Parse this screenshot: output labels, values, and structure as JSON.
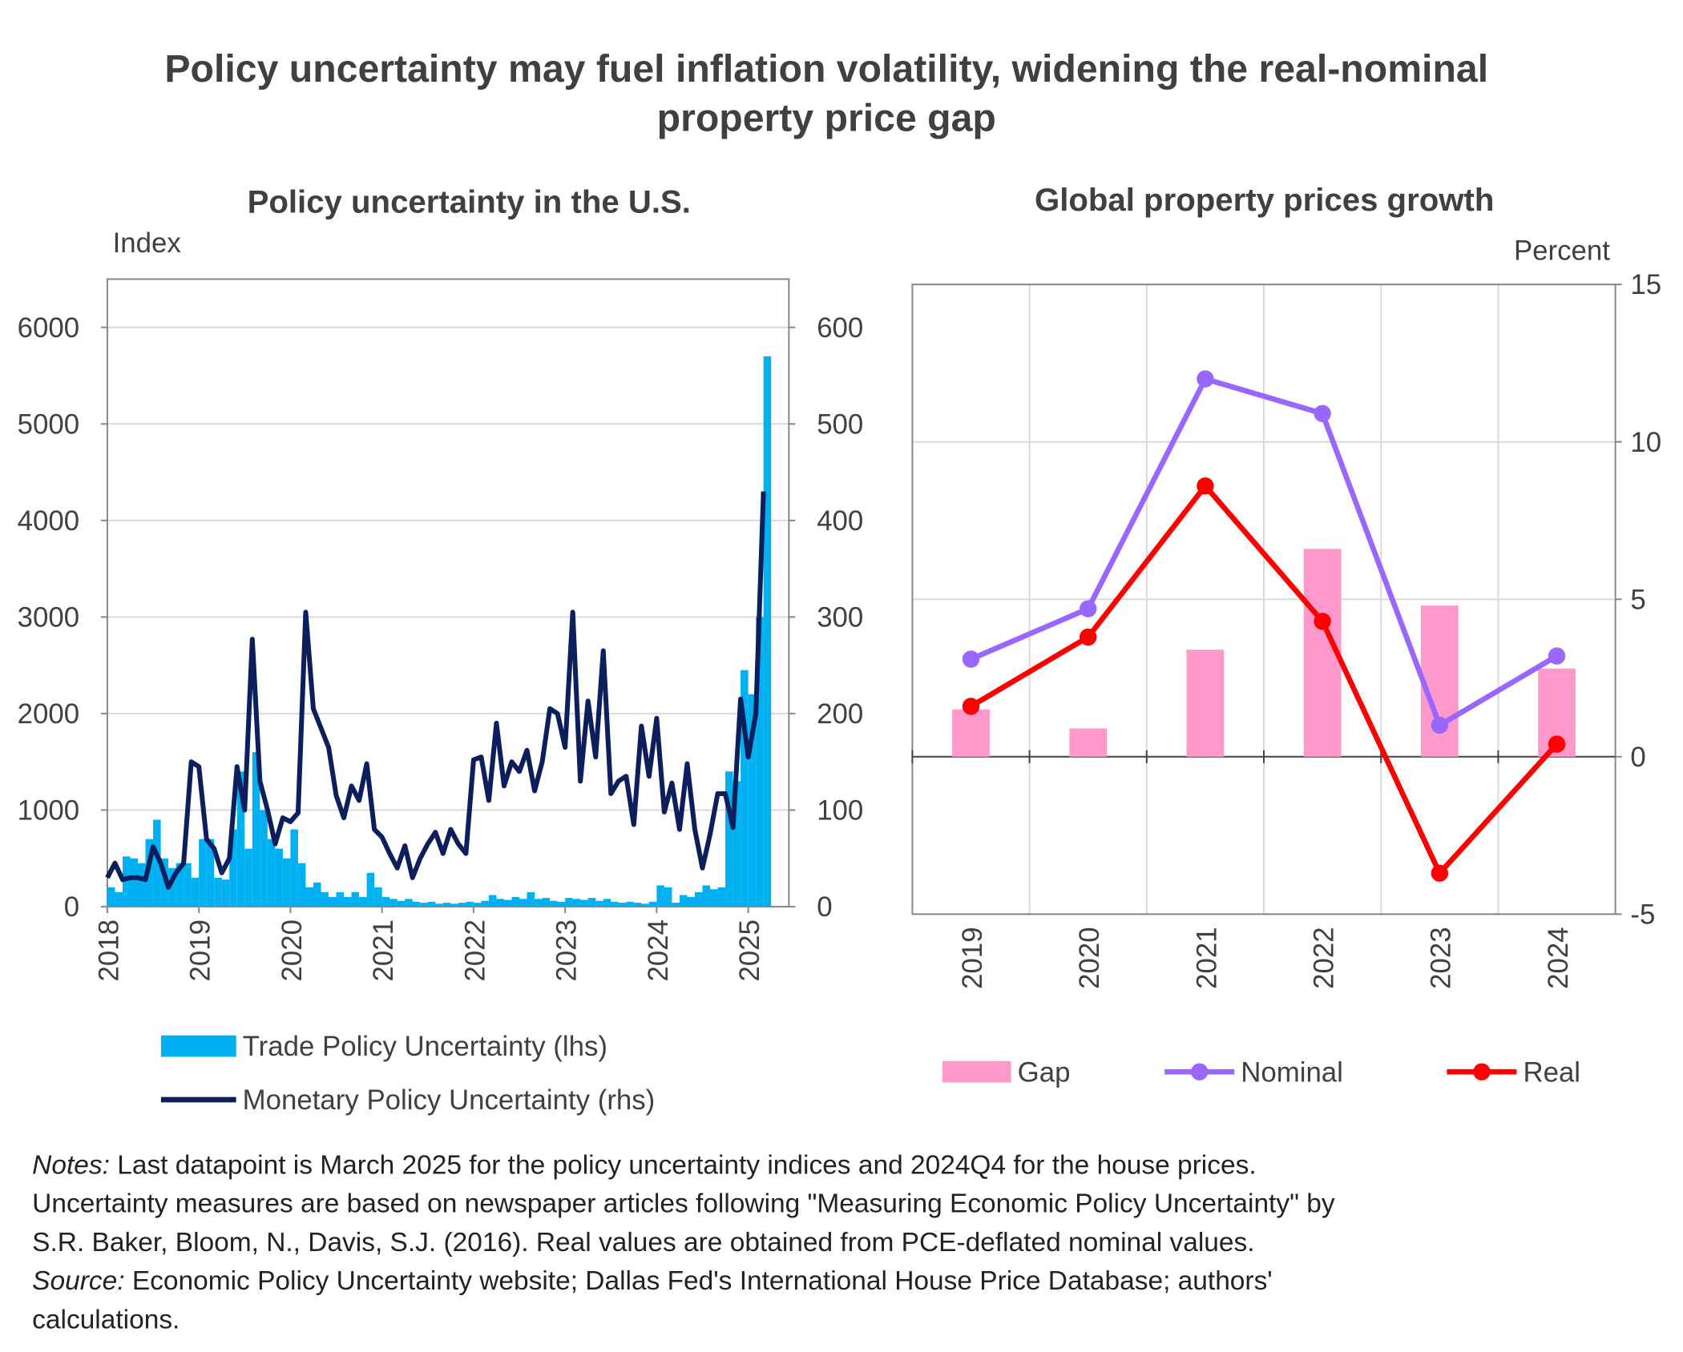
{
  "title": [
    "Policy uncertainty may fuel inflation volatility, widening the real-nominal",
    "property price gap"
  ],
  "chart_data": [
    {
      "type": "combo",
      "title": "Policy uncertainty in the U.S.",
      "y_label": "Index",
      "categories": [
        "2018",
        null,
        null,
        null,
        null,
        null,
        null,
        null,
        null,
        null,
        null,
        null,
        "2019",
        null,
        null,
        null,
        null,
        null,
        null,
        null,
        null,
        null,
        null,
        null,
        "2020",
        null,
        null,
        null,
        null,
        null,
        null,
        null,
        null,
        null,
        null,
        null,
        "2021",
        null,
        null,
        null,
        null,
        null,
        null,
        null,
        null,
        null,
        null,
        null,
        "2022",
        null,
        null,
        null,
        null,
        null,
        null,
        null,
        null,
        null,
        null,
        null,
        "2023",
        null,
        null,
        null,
        null,
        null,
        null,
        null,
        null,
        null,
        null,
        null,
        "2024",
        null,
        null,
        null,
        null,
        null,
        null,
        null,
        null,
        null,
        null,
        null,
        "2025",
        null,
        null
      ],
      "ylim": [
        0,
        6500
      ],
      "yticks": [
        0,
        1000,
        2000,
        3000,
        4000,
        5000,
        6000
      ],
      "y2lim": [
        0,
        650
      ],
      "y2ticks": [
        0,
        100,
        200,
        300,
        400,
        500,
        600
      ],
      "grid": true,
      "series": [
        {
          "name": "Trade Policy Uncertainty (lhs)",
          "color": "#00b0f0",
          "kind": "bar",
          "values": [
            200,
            150,
            520,
            500,
            450,
            700,
            900,
            500,
            400,
            450,
            450,
            300,
            700,
            700,
            300,
            280,
            800,
            1400,
            600,
            1600,
            1000,
            700,
            600,
            500,
            800,
            450,
            200,
            250,
            150,
            100,
            150,
            100,
            150,
            100,
            350,
            200,
            100,
            80,
            60,
            80,
            50,
            40,
            50,
            30,
            40,
            30,
            40,
            50,
            40,
            60,
            120,
            80,
            70,
            100,
            80,
            150,
            80,
            90,
            60,
            50,
            90,
            80,
            70,
            90,
            60,
            80,
            50,
            40,
            50,
            40,
            30,
            50,
            220,
            200,
            40,
            120,
            100,
            150,
            220,
            180,
            200,
            1400,
            1300,
            2450,
            2200,
            3000,
            5700
          ]
        },
        {
          "name": "Monetary Policy Uncertainty (rhs)",
          "color": "#0c1f5c",
          "kind": "line",
          "axis": "y2",
          "values": [
            30,
            45,
            28,
            30,
            30,
            28,
            62,
            45,
            20,
            35,
            45,
            150,
            145,
            70,
            60,
            35,
            50,
            145,
            100,
            277,
            130,
            100,
            65,
            92,
            88,
            97,
            305,
            205,
            185,
            165,
            115,
            92,
            125,
            110,
            148,
            80,
            72,
            55,
            40,
            63,
            30,
            50,
            65,
            77,
            55,
            80,
            65,
            55,
            152,
            155,
            110,
            190,
            125,
            150,
            140,
            162,
            120,
            150,
            205,
            200,
            165,
            305,
            130,
            213,
            155,
            265,
            117,
            130,
            135,
            85,
            187,
            135,
            195,
            98,
            128,
            80,
            148,
            80,
            40,
            75,
            117,
            117,
            82,
            215,
            155,
            200,
            430
          ]
        }
      ]
    },
    {
      "type": "combo",
      "title": "Global property prices growth",
      "y_label": "Percent",
      "axis_side": "right",
      "categories": [
        "2019",
        "2020",
        "2021",
        "2022",
        "2023",
        "2024"
      ],
      "ylim": [
        -5,
        15
      ],
      "yticks": [
        -5,
        0,
        5,
        10,
        15
      ],
      "grid": true,
      "series": [
        {
          "name": "Gap",
          "color": "#ff99cc",
          "kind": "bar",
          "values": [
            1.5,
            0.9,
            3.4,
            6.6,
            4.8,
            2.8
          ]
        },
        {
          "name": "Nominal",
          "color": "#9966ff",
          "kind": "line",
          "markers": true,
          "values": [
            3.1,
            4.7,
            12.0,
            10.9,
            1.0,
            3.2
          ]
        },
        {
          "name": "Real",
          "color": "#ff0000",
          "kind": "line",
          "markers": true,
          "values": [
            1.6,
            3.8,
            8.6,
            4.3,
            -3.7,
            0.4
          ]
        }
      ]
    }
  ],
  "notes": {
    "label": "Notes:",
    "lines": [
      "Last datapoint is March 2025 for the policy uncertainty indices and 2024Q4 for the house prices.",
      "Uncertainty measures are based on newspaper articles following \"Measuring Economic Policy Uncertainty\" by",
      "S.R. Baker, Bloom, N., Davis, S.J. (2016). Real values are obtained from PCE-deflated nominal values."
    ]
  },
  "source": {
    "label": "Source:",
    "lines": [
      "Economic Policy Uncertainty website; Dallas Fed's International House Price Database; authors'",
      "calculations."
    ]
  }
}
